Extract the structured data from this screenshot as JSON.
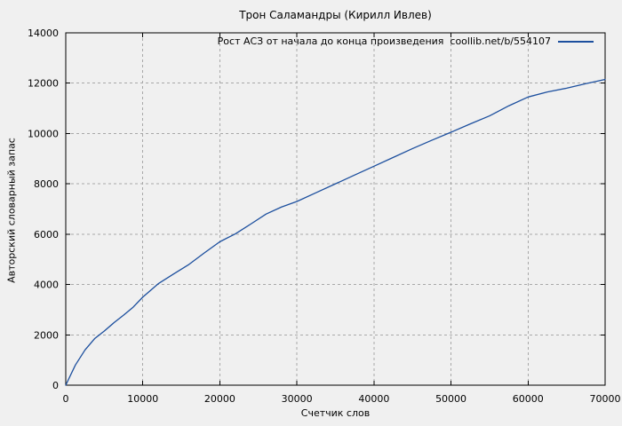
{
  "chart_data": {
    "type": "line",
    "title": "Трон Саламандры (Кирилл Ивлев)",
    "xlabel": "Счетчик слов",
    "ylabel": "Авторский словарный запас",
    "xlim": [
      0,
      70000
    ],
    "ylim": [
      0,
      14000
    ],
    "x_ticks": [
      0,
      10000,
      20000,
      30000,
      40000,
      50000,
      60000,
      70000
    ],
    "y_ticks": [
      0,
      2000,
      4000,
      6000,
      8000,
      10000,
      12000,
      14000
    ],
    "grid": true,
    "grid_style": "dashed",
    "legend_position": "top-right-inside",
    "background_color": "#f0f0f0",
    "grid_color": "#a8a8a8",
    "series": [
      {
        "name": "Рост АСЗ от начала до конца произведения  coollib.net/b/554107",
        "color": "#1c4f9e",
        "x": [
          0,
          1250,
          2500,
          3750,
          5000,
          6250,
          7500,
          8750,
          10000,
          12000,
          14000,
          16000,
          18000,
          20000,
          22000,
          24000,
          26000,
          28000,
          30000,
          32500,
          35000,
          37500,
          40000,
          42500,
          45000,
          47500,
          50000,
          52500,
          55000,
          57500,
          60000,
          62500,
          65000,
          67500,
          70000
        ],
        "y": [
          0,
          800,
          1400,
          1850,
          2150,
          2480,
          2780,
          3100,
          3500,
          4030,
          4420,
          4800,
          5260,
          5700,
          6010,
          6400,
          6800,
          7080,
          7300,
          7650,
          8000,
          8350,
          8700,
          9050,
          9400,
          9730,
          10050,
          10380,
          10700,
          11100,
          11450,
          11650,
          11800,
          11980,
          12150
        ]
      }
    ]
  }
}
